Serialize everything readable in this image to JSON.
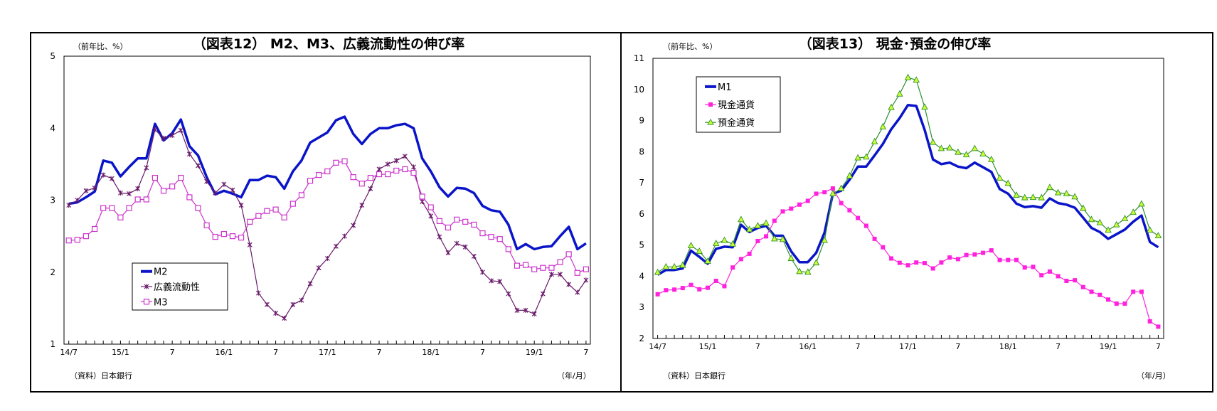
{
  "chart_data": [
    {
      "type": "line",
      "title": "（図表12） M2、M3、広義流動性の伸び率",
      "ylabel": "（前年比、%）",
      "xlabel": "（年/月）",
      "source": "（資料）日本銀行",
      "ylim": [
        1,
        5
      ],
      "yticks": [
        "1",
        "2",
        "3",
        "4",
        "5"
      ],
      "x_start": "14/7",
      "x_end": "19/7",
      "xtick_labels": [
        "14/7",
        "15/1",
        "7",
        "16/1",
        "7",
        "17/1",
        "7",
        "18/1",
        "7",
        "19/1",
        "7"
      ],
      "grid": false,
      "legend_position": "lower-left",
      "series": [
        {
          "name": "M2",
          "color": "#0a14c8",
          "marker": "none",
          "values": [
            2.95,
            2.97,
            3.04,
            3.12,
            3.55,
            3.52,
            3.33,
            3.46,
            3.58,
            3.58,
            4.06,
            3.83,
            3.93,
            4.12,
            3.75,
            3.62,
            3.32,
            3.08,
            3.13,
            3.09,
            3.04,
            3.28,
            3.28,
            3.34,
            3.32,
            3.16,
            3.4,
            3.55,
            3.8,
            3.87,
            3.94,
            4.11,
            4.16,
            3.92,
            3.78,
            3.92,
            4.0,
            4.0,
            4.04,
            4.06,
            4.0,
            3.58,
            3.4,
            3.18,
            3.05,
            3.17,
            3.16,
            3.1,
            2.92,
            2.86,
            2.84,
            2.66,
            2.32,
            2.39,
            2.32,
            2.35,
            2.36,
            2.5,
            2.63,
            2.32,
            2.4
          ]
        },
        {
          "name": "広義流動性",
          "color": "#6a1a6a",
          "marker": "asterisk",
          "values": [
            2.93,
            3.0,
            3.13,
            3.17,
            3.35,
            3.3,
            3.1,
            3.09,
            3.16,
            3.45,
            3.98,
            3.86,
            3.9,
            3.97,
            3.64,
            3.48,
            3.26,
            3.1,
            3.22,
            3.14,
            2.93,
            2.38,
            1.71,
            1.55,
            1.43,
            1.36,
            1.55,
            1.61,
            1.84,
            2.06,
            2.19,
            2.36,
            2.5,
            2.65,
            2.93,
            3.16,
            3.43,
            3.5,
            3.55,
            3.61,
            3.46,
            2.98,
            2.78,
            2.49,
            2.27,
            2.4,
            2.35,
            2.22,
            2.0,
            1.88,
            1.87,
            1.7,
            1.47,
            1.47,
            1.42,
            1.7,
            1.97,
            1.97,
            1.83,
            1.72,
            1.89
          ]
        },
        {
          "name": "M3",
          "color": "#cc33cc",
          "marker": "open-square",
          "values": [
            2.44,
            2.45,
            2.5,
            2.6,
            2.89,
            2.89,
            2.76,
            2.89,
            3.01,
            3.01,
            3.31,
            3.13,
            3.19,
            3.31,
            3.04,
            2.89,
            2.65,
            2.49,
            2.53,
            2.5,
            2.48,
            2.7,
            2.78,
            2.85,
            2.87,
            2.76,
            2.95,
            3.07,
            3.27,
            3.35,
            3.4,
            3.52,
            3.54,
            3.32,
            3.23,
            3.31,
            3.36,
            3.36,
            3.41,
            3.43,
            3.38,
            3.05,
            2.9,
            2.71,
            2.62,
            2.73,
            2.7,
            2.66,
            2.54,
            2.49,
            2.46,
            2.32,
            2.09,
            2.1,
            2.04,
            2.06,
            2.06,
            2.14,
            2.25,
            1.99,
            2.04
          ]
        }
      ]
    },
    {
      "type": "line",
      "title": "（図表13） 現金･預金の伸び率",
      "ylabel": "（前年比、%）",
      "xlabel": "（年/月）",
      "source": "（資料）日本銀行",
      "ylim": [
        2,
        11
      ],
      "yticks": [
        "2",
        "3",
        "4",
        "5",
        "6",
        "7",
        "8",
        "9",
        "10",
        "11"
      ],
      "x_start": "14/7",
      "x_end": "19/7",
      "xtick_labels": [
        "14/7",
        "15/1",
        "7",
        "16/1",
        "7",
        "17/1",
        "7",
        "18/1",
        "7",
        "19/1",
        "7"
      ],
      "grid": false,
      "legend_position": "top-left",
      "series": [
        {
          "name": "M1",
          "color": "#0a14c8",
          "marker": "none",
          "values": [
            4.05,
            4.2,
            4.2,
            4.25,
            4.82,
            4.62,
            4.4,
            4.88,
            4.95,
            4.93,
            5.65,
            5.42,
            5.55,
            5.62,
            5.3,
            5.3,
            4.8,
            4.45,
            4.45,
            4.75,
            5.4,
            6.65,
            6.75,
            7.1,
            7.52,
            7.52,
            7.88,
            8.25,
            8.72,
            9.08,
            9.5,
            9.47,
            8.7,
            7.75,
            7.6,
            7.65,
            7.52,
            7.47,
            7.65,
            7.5,
            7.35,
            6.8,
            6.65,
            6.33,
            6.22,
            6.25,
            6.2,
            6.5,
            6.35,
            6.3,
            6.2,
            5.88,
            5.55,
            5.42,
            5.2,
            5.35,
            5.5,
            5.75,
            5.95,
            5.1,
            4.93
          ]
        },
        {
          "name": "現金通貨",
          "color": "#ff22dd",
          "marker": "filled-square",
          "values": [
            3.42,
            3.55,
            3.57,
            3.62,
            3.72,
            3.58,
            3.63,
            3.85,
            3.68,
            4.28,
            4.55,
            4.72,
            5.13,
            5.28,
            5.78,
            6.08,
            6.17,
            6.3,
            6.42,
            6.65,
            6.7,
            6.82,
            6.35,
            6.12,
            5.87,
            5.62,
            5.2,
            4.93,
            4.57,
            4.43,
            4.35,
            4.44,
            4.42,
            4.25,
            4.44,
            4.6,
            4.55,
            4.68,
            4.7,
            4.75,
            4.83,
            4.52,
            4.52,
            4.52,
            4.28,
            4.3,
            4.03,
            4.15,
            4.0,
            3.85,
            3.87,
            3.65,
            3.5,
            3.4,
            3.25,
            3.12,
            3.12,
            3.5,
            3.5,
            2.55,
            2.38
          ]
        },
        {
          "name": "預金通貨",
          "color": "#2f8f2f",
          "marker_fill": "#ccff33",
          "marker": "triangle",
          "values": [
            4.12,
            4.3,
            4.3,
            4.35,
            4.98,
            4.8,
            4.48,
            5.05,
            5.15,
            5.03,
            5.82,
            5.5,
            5.62,
            5.7,
            5.2,
            5.18,
            4.57,
            4.15,
            4.13,
            4.43,
            5.15,
            6.65,
            6.82,
            7.22,
            7.8,
            7.83,
            8.32,
            8.8,
            9.42,
            9.85,
            10.38,
            10.3,
            9.43,
            8.3,
            8.1,
            8.12,
            7.98,
            7.9,
            8.1,
            7.93,
            7.75,
            7.15,
            6.98,
            6.6,
            6.52,
            6.53,
            6.52,
            6.85,
            6.68,
            6.65,
            6.55,
            6.18,
            5.82,
            5.72,
            5.48,
            5.65,
            5.85,
            6.05,
            6.32,
            5.48,
            5.3
          ]
        }
      ]
    }
  ]
}
